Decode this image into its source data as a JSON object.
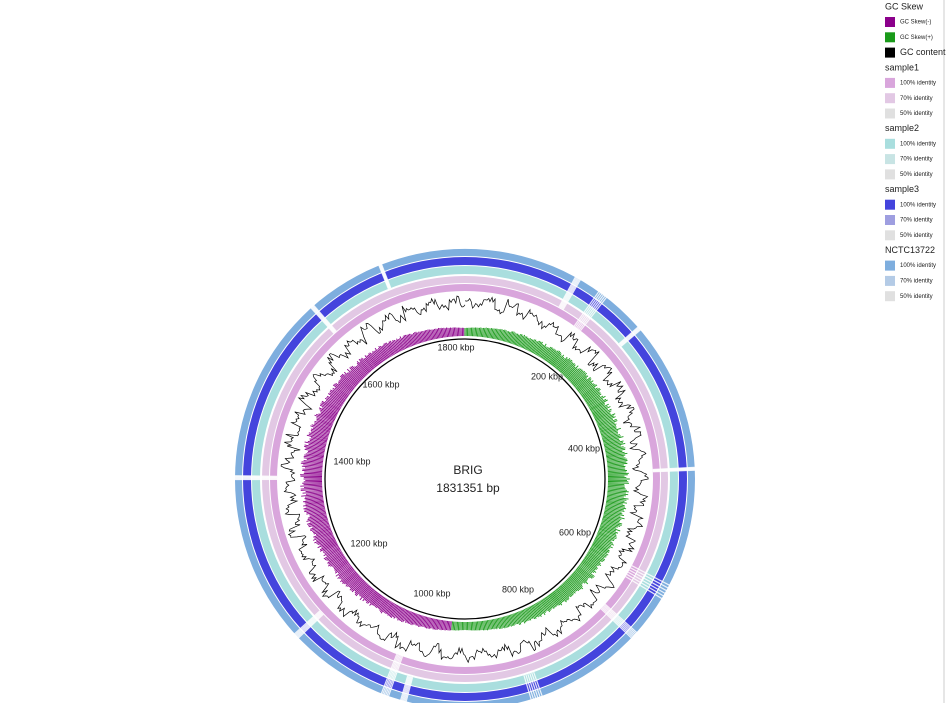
{
  "center": {
    "title": "BRIG",
    "length": "1831351 bp"
  },
  "ticks": [
    "200 kbp",
    "400 kbp",
    "600 kbp",
    "800 kbp",
    "1000 kbp",
    "1200 kbp",
    "1400 kbp",
    "1600 kbp",
    "1800 kbp"
  ],
  "legend": [
    {
      "title": "GC Skew",
      "items": [
        {
          "label": "GC Skew(-)",
          "color": "#8b008b"
        },
        {
          "label": "GC Skew(+)",
          "color": "#1a9a1a"
        },
        {
          "label": "GC content",
          "color": "#000000"
        }
      ]
    },
    {
      "title": "sample1",
      "items": [
        {
          "label": "100% identity",
          "color": "#d9a6dc"
        },
        {
          "label": "70% identity",
          "color": "#e2c8e4"
        },
        {
          "label": "50% identity",
          "color": "#e0e0e0"
        }
      ]
    },
    {
      "title": "sample2",
      "items": [
        {
          "label": "100% identity",
          "color": "#a9dede"
        },
        {
          "label": "70% identity",
          "color": "#c8e4e4"
        },
        {
          "label": "50% identity",
          "color": "#e0e0e0"
        }
      ]
    },
    {
      "title": "sample3",
      "items": [
        {
          "label": "100% identity",
          "color": "#4444dd"
        },
        {
          "label": "70% identity",
          "color": "#9e9ee0"
        },
        {
          "label": "50% identity",
          "color": "#e0e0e0"
        }
      ]
    },
    {
      "title": "NCTC13722",
      "items": [
        {
          "label": "100% identity",
          "color": "#7eaede"
        },
        {
          "label": "70% identity",
          "color": "#b4cbe6"
        },
        {
          "label": "50% identity",
          "color": "#e0e0e0"
        }
      ]
    }
  ]
}
